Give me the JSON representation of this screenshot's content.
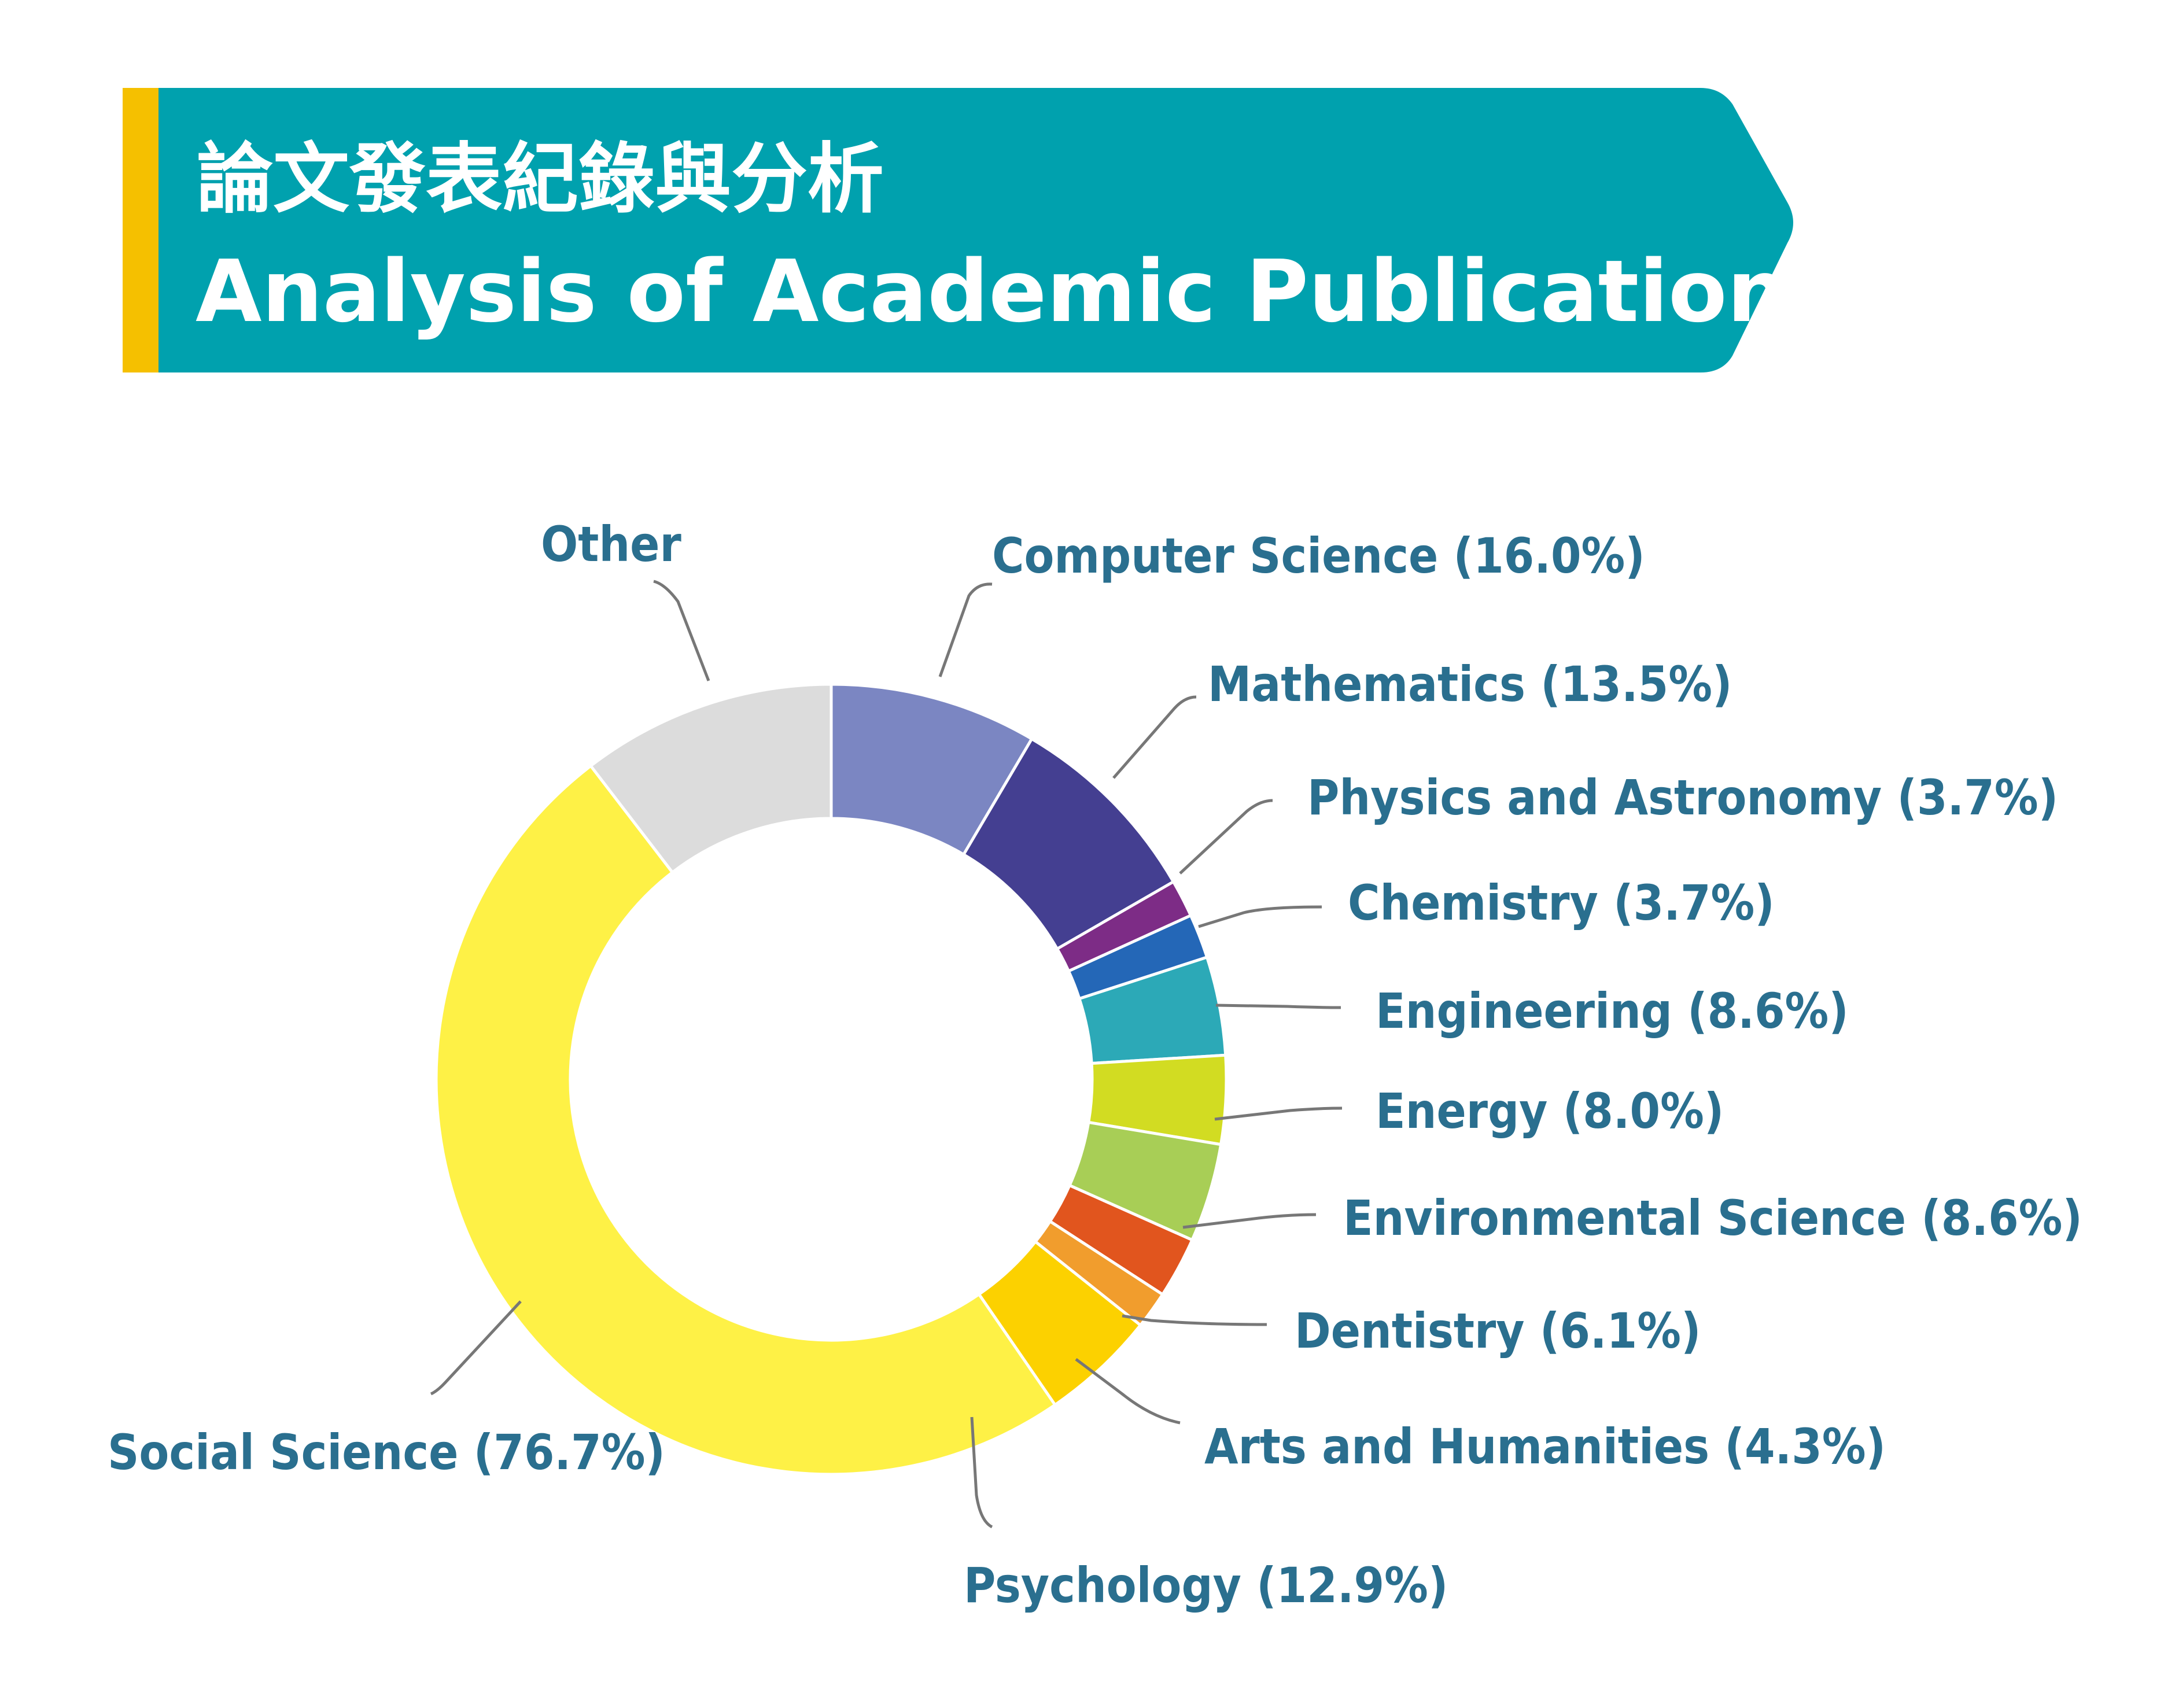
{
  "header": {
    "title_zh": "論文發表紀錄與分析",
    "title_en": "Analysis of Academic Publications",
    "accent_color": "#F5C000",
    "band_color": "#00A1AE"
  },
  "chart_data": {
    "type": "pie",
    "variant": "donut",
    "title": "Analysis of Academic Publications",
    "slices": [
      {
        "name": "Computer Science",
        "label": "Computer Science (16.0%)",
        "value": 16.0,
        "color": "#7B86C2"
      },
      {
        "name": "Mathematics",
        "label": "Mathematics (13.5%)",
        "value": 13.5,
        "color": "#443F91"
      },
      {
        "name": "Physics and Astronomy",
        "label": "Physics and Astronomy (3.7%)",
        "value": 3.7,
        "color": "#7D2C86"
      },
      {
        "name": "Chemistry",
        "label": "Chemistry (3.7%)",
        "value": 3.7,
        "color": "#2467B7"
      },
      {
        "name": "Engineering",
        "label": "Engineering (8.6%)",
        "value": 8.6,
        "color": "#2CA9B7"
      },
      {
        "name": "Energy",
        "label": "Energy (8.0%)",
        "value": 8.0,
        "color": "#D2DC22"
      },
      {
        "name": "Environmental Science",
        "label": "Environmental Science (8.6%)",
        "value": 8.6,
        "color": "#A8CE56"
      },
      {
        "name": "Dentistry",
        "label": "Dentistry (6.1%)",
        "value": 6.1,
        "color": "#E1551E"
      },
      {
        "name": "Arts and Humanities",
        "label": "Arts and Humanities (4.3%)",
        "value": 4.3,
        "color": "#F19D2D"
      },
      {
        "name": "Psychology",
        "label": "Psychology (12.9%)",
        "value": 12.9,
        "color": "#FCD100"
      },
      {
        "name": "Social Science",
        "label": "Social Science (76.7%)",
        "value": 76.7,
        "color": "#FEF146"
      },
      {
        "name": "Other",
        "label": "Other",
        "value": null,
        "color": "#DCDCDC"
      }
    ]
  }
}
